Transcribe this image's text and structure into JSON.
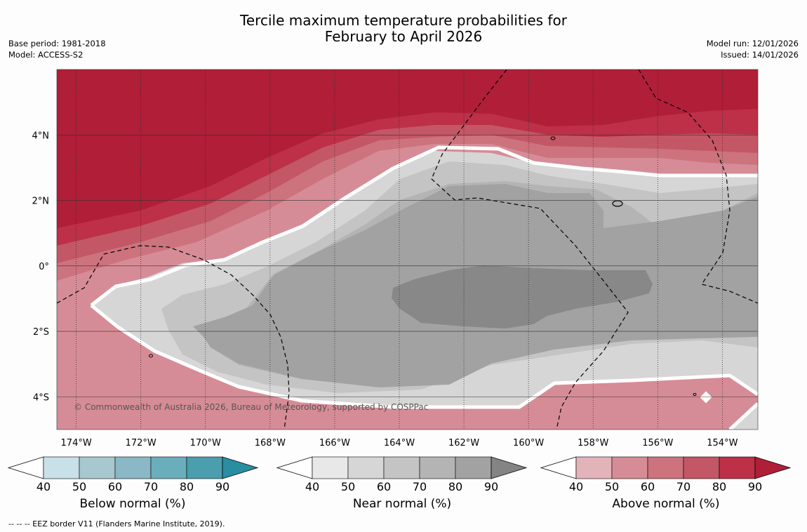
{
  "title_line1": "Tercile maximum temperature probabilities for",
  "title_line2": "February to April 2026",
  "base_period": "Base period: 1981-2018",
  "model": "Model: ACCESS-S2",
  "model_run": "Model run: 12/01/2026",
  "issued": "Issued: 14/01/2026",
  "copyright": "© Commonwealth of Australia 2026, Bureau of Meteorology, supported by COSPPac",
  "footer_note": "--  --  -- EEZ border V11 (Flanders Marine Institute, 2019).",
  "map": {
    "lon_range": [
      -174.6,
      -152.9
    ],
    "lat_range": [
      -5.0,
      6.0
    ],
    "lon_ticks": [
      -174,
      -172,
      -170,
      -168,
      -166,
      -164,
      -162,
      -160,
      -158,
      -156,
      -154
    ],
    "lon_tick_labels": [
      "174°W",
      "172°W",
      "170°W",
      "168°W",
      "166°W",
      "164°W",
      "162°W",
      "160°W",
      "158°W",
      "156°W",
      "154°W"
    ],
    "lat_ticks": [
      4,
      2,
      0,
      -2,
      -4
    ],
    "lat_tick_labels": [
      "4°N",
      "2°N",
      "0°",
      "2°S",
      "4°S"
    ]
  },
  "colorbars": [
    {
      "id": "below",
      "label": "Below normal (%)",
      "ticks": [
        "40",
        "50",
        "60",
        "70",
        "80",
        "90"
      ],
      "colors": [
        "#c8e0e7",
        "#a8c8cf",
        "#8ab8c6",
        "#6aaebc",
        "#4a9eae",
        "#2a8ea2"
      ]
    },
    {
      "id": "near",
      "label": "Near normal (%)",
      "ticks": [
        "40",
        "50",
        "60",
        "70",
        "80",
        "90"
      ],
      "colors": [
        "#e8e8e8",
        "#d6d6d6",
        "#c4c4c4",
        "#b4b4b4",
        "#a2a2a2",
        "#848484"
      ]
    },
    {
      "id": "above",
      "label": "Above normal (%)",
      "ticks": [
        "40",
        "50",
        "60",
        "70",
        "80",
        "90"
      ],
      "colors": [
        "#e2b4ba",
        "#d68c96",
        "#cc737e",
        "#c35765",
        "#bd3047",
        "#b01e38"
      ]
    }
  ],
  "legend_colors": {
    "white_contour": "#ffffff",
    "eez_border": "#000000"
  }
}
